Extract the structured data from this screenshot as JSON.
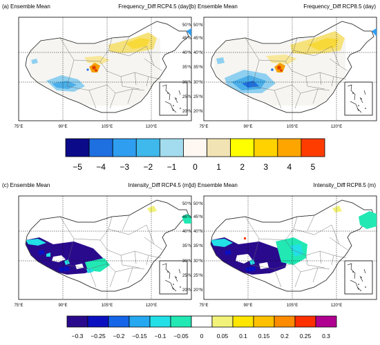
{
  "panels": [
    {
      "title": "(a) Ensemble Mean",
      "variable": "Frequency_Diff RCP4.5 (day)"
    },
    {
      "title": "(b) Ensemble Mean",
      "variable": "Frequency_Diff RCP8.5 (day)"
    },
    {
      "title": "(c) Ensemble Mean",
      "variable": "Intensity_Diff RCP4.5 (m)"
    },
    {
      "title": "(d) Ensemble Mean",
      "variable": "Intensity_Diff RCP8.5 (m)"
    }
  ],
  "lon_ticks": [
    "75°E",
    "90°E",
    "105°E",
    "120°E"
  ],
  "lat_ticks": [
    "50°N",
    "45°N",
    "40°N",
    "35°N",
    "30°N",
    "25°N",
    "20°N"
  ],
  "colorbar_top": {
    "labels": [
      "−5",
      "−4",
      "−3",
      "−2",
      "−1",
      "0",
      "1",
      "2",
      "3",
      "4",
      "5"
    ],
    "colors": [
      "#0b0b8a",
      "#1e6fe0",
      "#2f9ef0",
      "#3fb8ec",
      "#a2dcee",
      "#fff8f2",
      "#f2e3b4",
      "#ffff00",
      "#ffd200",
      "#ffa500",
      "#ff3c00"
    ]
  },
  "colorbar_bottom": {
    "labels": [
      "−0.3",
      "−0.25",
      "−0.2",
      "−0.15",
      "−0.1",
      "−0.05",
      "0",
      "0.05",
      "0.1",
      "0.15",
      "0.2",
      "0.25",
      "0.3"
    ],
    "colors": [
      "#2a0a8c",
      "#0a10c0",
      "#1565e8",
      "#25a8ef",
      "#22e0e6",
      "#22e8b4",
      "#ffffff",
      "#f2f27a",
      "#ffe600",
      "#ffc000",
      "#ff8c00",
      "#ff3000",
      "#b00090"
    ]
  },
  "colors": {
    "china_fill": "#ffffff",
    "pale_fill": "#f3f1ec",
    "map_outline": "#333333"
  }
}
